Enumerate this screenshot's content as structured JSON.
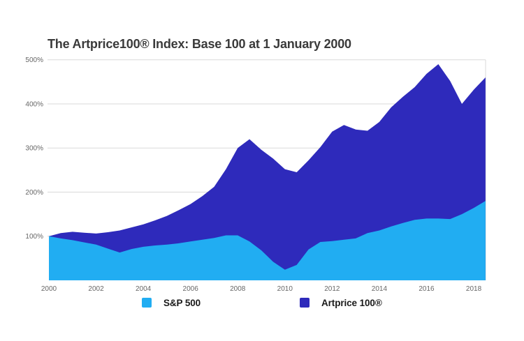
{
  "chart": {
    "title": "The Artprice100® Index: Base 100 at 1 January 2000",
    "legend": [
      {
        "label": "S&P 500"
      },
      {
        "label": "Artprice 100®"
      }
    ]
  },
  "colors": {
    "background": "#FFFFFF",
    "sp500": "#21ADF2",
    "artprice": "#2E2ABB",
    "grid": "#D9D9D9",
    "title_text": "#3A3A3A",
    "tick_text": "#666666",
    "legend_text": "#1A1A1A"
  },
  "chart_data": {
    "type": "area",
    "mode": "overlay",
    "title": "The Artprice100® Index: Base 100 at 1 January 2000",
    "xlabel": "",
    "ylabel": "",
    "ytick_suffix": "%",
    "yticks": [
      100,
      200,
      300,
      400,
      500
    ],
    "xticks": [
      2000,
      2002,
      2004,
      2006,
      2008,
      2010,
      2012,
      2014,
      2016,
      2018
    ],
    "ylim": [
      0,
      500
    ],
    "xlim": [
      2000,
      2018.5
    ],
    "grid": true,
    "legend_position": "bottom",
    "x": [
      2000,
      2000.5,
      2001,
      2001.5,
      2002,
      2002.5,
      2003,
      2003.5,
      2004,
      2004.5,
      2005,
      2005.5,
      2006,
      2006.5,
      2007,
      2007.5,
      2008,
      2008.5,
      2009,
      2009.5,
      2010,
      2010.5,
      2011,
      2011.5,
      2012,
      2012.5,
      2013,
      2013.5,
      2014,
      2014.5,
      2015,
      2015.5,
      2016,
      2016.5,
      2017,
      2017.5,
      2018,
      2018.5
    ],
    "series": [
      {
        "name": "S&P 500",
        "color": "#21ADF2",
        "values": [
          100,
          95,
          91,
          86,
          81,
          72,
          63,
          71,
          76,
          79,
          81,
          84,
          88,
          92,
          96,
          102,
          102,
          88,
          68,
          42,
          24,
          35,
          70,
          87,
          89,
          92,
          95,
          107,
          113,
          122,
          130,
          137,
          140,
          140,
          139,
          150,
          164,
          180
        ]
      },
      {
        "name": "Artprice 100®",
        "color": "#2E2ABB",
        "values": [
          100,
          107,
          110,
          108,
          106,
          109,
          113,
          120,
          127,
          136,
          146,
          159,
          173,
          191,
          212,
          252,
          300,
          320,
          296,
          276,
          252,
          245,
          272,
          302,
          337,
          352,
          342,
          339,
          359,
          392,
          416,
          438,
          468,
          490,
          452,
          400,
          432,
          460
        ]
      }
    ]
  }
}
